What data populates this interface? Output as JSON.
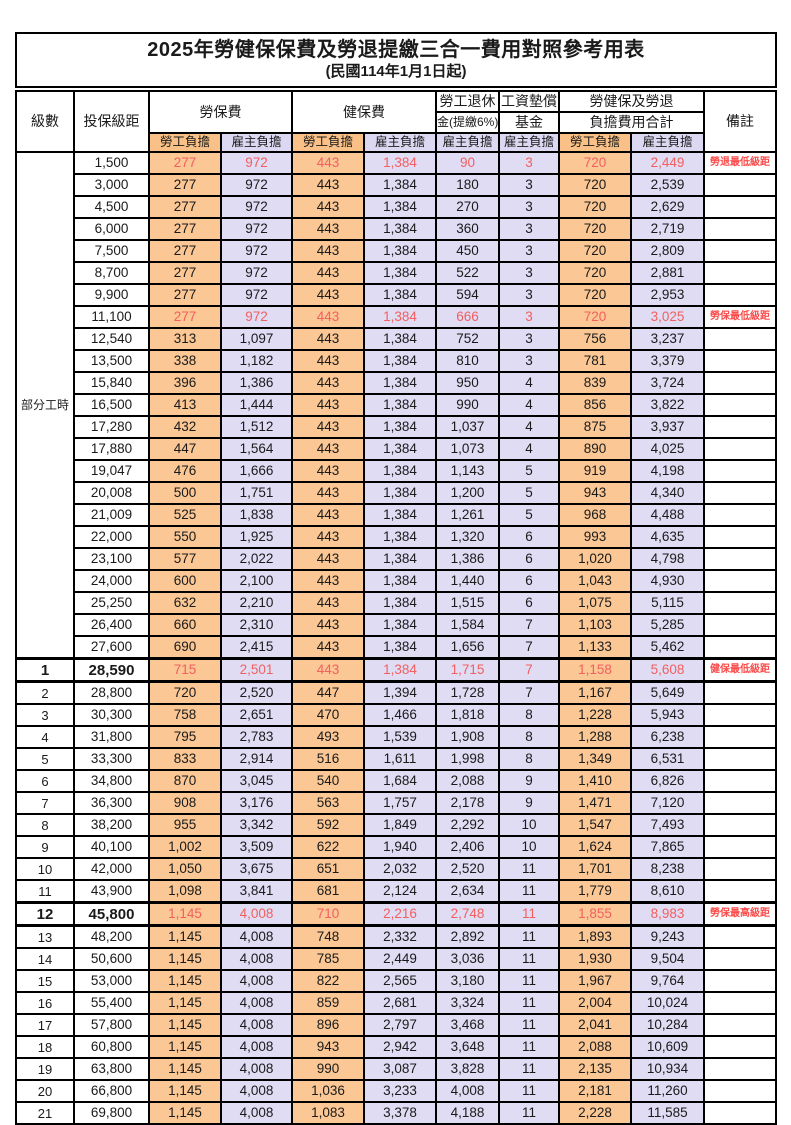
{
  "title": "2025年勞健保保費及勞退提繳三合一費用對照參考用表",
  "subtitle": "(民國114年1月1日起)",
  "header": {
    "level": "級數",
    "bracket": "投保級距",
    "labor_insurance": "勞保費",
    "health_insurance": "健保費",
    "pension_line1": "勞工退休",
    "pension_line2": "金(提繳6%)",
    "fund_line1": "工資墊償",
    "fund_line2": "基金",
    "total_line1": "勞健保及勞退",
    "total_line2": "負擔費用合計",
    "remark": "備註",
    "employee": "勞工負擔",
    "employer": "雇主負擔"
  },
  "part_time_label": "部分工時",
  "part_time_row_count": 23,
  "colors": {
    "employee_bg": "#FAC795",
    "employer_bg": "#E0DCF4",
    "employee_header_bg": "#F9C187",
    "employer_header_bg": "#DCD8F1",
    "highlight_text": "#F25F5F",
    "remark_text": "#FB4B4B",
    "border": "#000000"
  },
  "style": {
    "red_rows": [
      0,
      7,
      23,
      34
    ],
    "bold_rows": [
      23,
      34
    ]
  },
  "rows": [
    [
      "",
      "1,500",
      "277",
      "972",
      "443",
      "1,384",
      "90",
      "3",
      "720",
      "2,449",
      "勞退最低級距"
    ],
    [
      "",
      "3,000",
      "277",
      "972",
      "443",
      "1,384",
      "180",
      "3",
      "720",
      "2,539",
      ""
    ],
    [
      "",
      "4,500",
      "277",
      "972",
      "443",
      "1,384",
      "270",
      "3",
      "720",
      "2,629",
      ""
    ],
    [
      "",
      "6,000",
      "277",
      "972",
      "443",
      "1,384",
      "360",
      "3",
      "720",
      "2,719",
      ""
    ],
    [
      "",
      "7,500",
      "277",
      "972",
      "443",
      "1,384",
      "450",
      "3",
      "720",
      "2,809",
      ""
    ],
    [
      "",
      "8,700",
      "277",
      "972",
      "443",
      "1,384",
      "522",
      "3",
      "720",
      "2,881",
      ""
    ],
    [
      "",
      "9,900",
      "277",
      "972",
      "443",
      "1,384",
      "594",
      "3",
      "720",
      "2,953",
      ""
    ],
    [
      "",
      "11,100",
      "277",
      "972",
      "443",
      "1,384",
      "666",
      "3",
      "720",
      "3,025",
      "勞保最低級距"
    ],
    [
      "",
      "12,540",
      "313",
      "1,097",
      "443",
      "1,384",
      "752",
      "3",
      "756",
      "3,237",
      ""
    ],
    [
      "",
      "13,500",
      "338",
      "1,182",
      "443",
      "1,384",
      "810",
      "3",
      "781",
      "3,379",
      ""
    ],
    [
      "",
      "15,840",
      "396",
      "1,386",
      "443",
      "1,384",
      "950",
      "4",
      "839",
      "3,724",
      ""
    ],
    [
      "",
      "16,500",
      "413",
      "1,444",
      "443",
      "1,384",
      "990",
      "4",
      "856",
      "3,822",
      ""
    ],
    [
      "",
      "17,280",
      "432",
      "1,512",
      "443",
      "1,384",
      "1,037",
      "4",
      "875",
      "3,937",
      ""
    ],
    [
      "",
      "17,880",
      "447",
      "1,564",
      "443",
      "1,384",
      "1,073",
      "4",
      "890",
      "4,025",
      ""
    ],
    [
      "",
      "19,047",
      "476",
      "1,666",
      "443",
      "1,384",
      "1,143",
      "5",
      "919",
      "4,198",
      ""
    ],
    [
      "",
      "20,008",
      "500",
      "1,751",
      "443",
      "1,384",
      "1,200",
      "5",
      "943",
      "4,340",
      ""
    ],
    [
      "",
      "21,009",
      "525",
      "1,838",
      "443",
      "1,384",
      "1,261",
      "5",
      "968",
      "4,488",
      ""
    ],
    [
      "",
      "22,000",
      "550",
      "1,925",
      "443",
      "1,384",
      "1,320",
      "6",
      "993",
      "4,635",
      ""
    ],
    [
      "",
      "23,100",
      "577",
      "2,022",
      "443",
      "1,384",
      "1,386",
      "6",
      "1,020",
      "4,798",
      ""
    ],
    [
      "",
      "24,000",
      "600",
      "2,100",
      "443",
      "1,384",
      "1,440",
      "6",
      "1,043",
      "4,930",
      ""
    ],
    [
      "",
      "25,250",
      "632",
      "2,210",
      "443",
      "1,384",
      "1,515",
      "6",
      "1,075",
      "5,115",
      ""
    ],
    [
      "",
      "26,400",
      "660",
      "2,310",
      "443",
      "1,384",
      "1,584",
      "7",
      "1,103",
      "5,285",
      ""
    ],
    [
      "",
      "27,600",
      "690",
      "2,415",
      "443",
      "1,384",
      "1,656",
      "7",
      "1,133",
      "5,462",
      ""
    ],
    [
      "1",
      "28,590",
      "715",
      "2,501",
      "443",
      "1,384",
      "1,715",
      "7",
      "1,158",
      "5,608",
      "健保最低級距"
    ],
    [
      "2",
      "28,800",
      "720",
      "2,520",
      "447",
      "1,394",
      "1,728",
      "7",
      "1,167",
      "5,649",
      ""
    ],
    [
      "3",
      "30,300",
      "758",
      "2,651",
      "470",
      "1,466",
      "1,818",
      "8",
      "1,228",
      "5,943",
      ""
    ],
    [
      "4",
      "31,800",
      "795",
      "2,783",
      "493",
      "1,539",
      "1,908",
      "8",
      "1,288",
      "6,238",
      ""
    ],
    [
      "5",
      "33,300",
      "833",
      "2,914",
      "516",
      "1,611",
      "1,998",
      "8",
      "1,349",
      "6,531",
      ""
    ],
    [
      "6",
      "34,800",
      "870",
      "3,045",
      "540",
      "1,684",
      "2,088",
      "9",
      "1,410",
      "6,826",
      ""
    ],
    [
      "7",
      "36,300",
      "908",
      "3,176",
      "563",
      "1,757",
      "2,178",
      "9",
      "1,471",
      "7,120",
      ""
    ],
    [
      "8",
      "38,200",
      "955",
      "3,342",
      "592",
      "1,849",
      "2,292",
      "10",
      "1,547",
      "7,493",
      ""
    ],
    [
      "9",
      "40,100",
      "1,002",
      "3,509",
      "622",
      "1,940",
      "2,406",
      "10",
      "1,624",
      "7,865",
      ""
    ],
    [
      "10",
      "42,000",
      "1,050",
      "3,675",
      "651",
      "2,032",
      "2,520",
      "11",
      "1,701",
      "8,238",
      ""
    ],
    [
      "11",
      "43,900",
      "1,098",
      "3,841",
      "681",
      "2,124",
      "2,634",
      "11",
      "1,779",
      "8,610",
      ""
    ],
    [
      "12",
      "45,800",
      "1,145",
      "4,008",
      "710",
      "2,216",
      "2,748",
      "11",
      "1,855",
      "8,983",
      "勞保最高級距"
    ],
    [
      "13",
      "48,200",
      "1,145",
      "4,008",
      "748",
      "2,332",
      "2,892",
      "11",
      "1,893",
      "9,243",
      ""
    ],
    [
      "14",
      "50,600",
      "1,145",
      "4,008",
      "785",
      "2,449",
      "3,036",
      "11",
      "1,930",
      "9,504",
      ""
    ],
    [
      "15",
      "53,000",
      "1,145",
      "4,008",
      "822",
      "2,565",
      "3,180",
      "11",
      "1,967",
      "9,764",
      ""
    ],
    [
      "16",
      "55,400",
      "1,145",
      "4,008",
      "859",
      "2,681",
      "3,324",
      "11",
      "2,004",
      "10,024",
      ""
    ],
    [
      "17",
      "57,800",
      "1,145",
      "4,008",
      "896",
      "2,797",
      "3,468",
      "11",
      "2,041",
      "10,284",
      ""
    ],
    [
      "18",
      "60,800",
      "1,145",
      "4,008",
      "943",
      "2,942",
      "3,648",
      "11",
      "2,088",
      "10,609",
      ""
    ],
    [
      "19",
      "63,800",
      "1,145",
      "4,008",
      "990",
      "3,087",
      "3,828",
      "11",
      "2,135",
      "10,934",
      ""
    ],
    [
      "20",
      "66,800",
      "1,145",
      "4,008",
      "1,036",
      "3,233",
      "4,008",
      "11",
      "2,181",
      "11,260",
      ""
    ],
    [
      "21",
      "69,800",
      "1,145",
      "4,008",
      "1,083",
      "3,378",
      "4,188",
      "11",
      "2,228",
      "11,585",
      ""
    ]
  ]
}
